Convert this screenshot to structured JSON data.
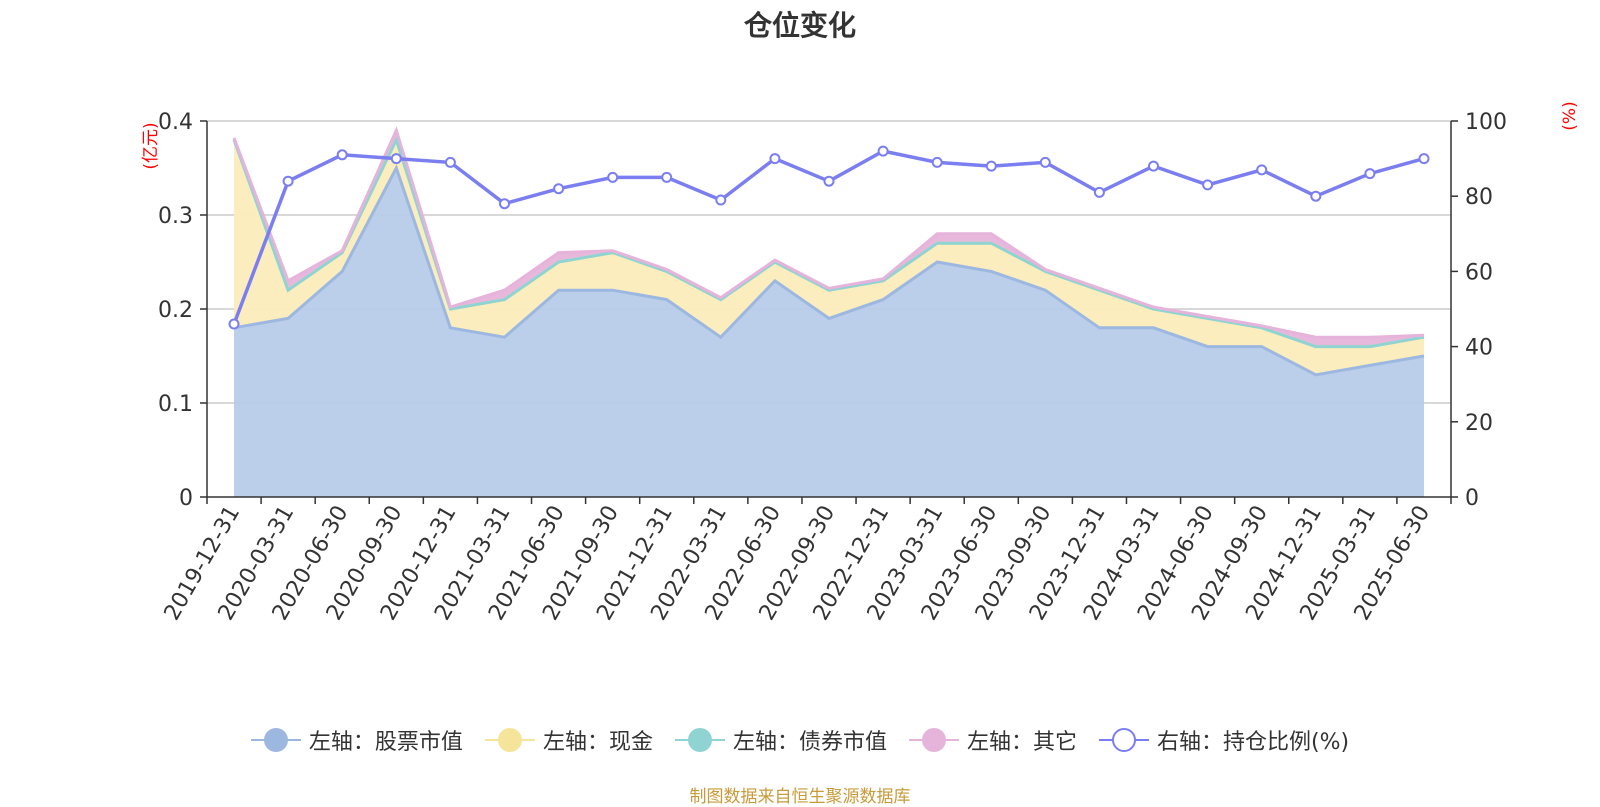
{
  "title": "仓位变化",
  "source_note": "制图数据来自恒生聚源数据库",
  "colors": {
    "stock": "#9db8e0",
    "stock_fill": "#b7cbe9",
    "cash": "#f5e49a",
    "cash_fill": "#fbecba",
    "bond": "#8fd3d3",
    "other": "#e6b3da",
    "ratio": "#7b7ef0",
    "axis_name": "#ff0000",
    "grid": "#cccccc"
  },
  "chart_data": {
    "type": "area",
    "left_axis": {
      "name": "(亿元)",
      "min": 0,
      "max": 0.4,
      "ticks": [
        "0",
        "0.1",
        "0.2",
        "0.3",
        "0.4"
      ]
    },
    "right_axis": {
      "name": "(%)",
      "min": 0,
      "max": 100,
      "ticks": [
        "0",
        "20",
        "40",
        "60",
        "80",
        "100"
      ]
    },
    "categories": [
      "2019-12-31",
      "2020-03-31",
      "2020-06-30",
      "2020-09-30",
      "2020-12-31",
      "2021-03-31",
      "2021-06-30",
      "2021-09-30",
      "2021-12-31",
      "2022-03-31",
      "2022-06-30",
      "2022-09-30",
      "2022-12-31",
      "2023-03-31",
      "2023-06-30",
      "2023-09-30",
      "2023-12-31",
      "2024-03-31",
      "2024-06-30",
      "2024-09-30",
      "2024-12-31",
      "2025-03-31",
      "2025-06-30"
    ],
    "series": [
      {
        "name": "左轴：股票市值",
        "axis": "left",
        "kind": "stacked-area",
        "values": [
          0.18,
          0.19,
          0.24,
          0.35,
          0.18,
          0.17,
          0.22,
          0.22,
          0.21,
          0.17,
          0.23,
          0.19,
          0.21,
          0.25,
          0.24,
          0.22,
          0.18,
          0.18,
          0.16,
          0.16,
          0.13,
          0.14,
          0.15
        ]
      },
      {
        "name": "左轴：现金",
        "axis": "left",
        "kind": "stacked-area",
        "values": [
          0.2,
          0.03,
          0.02,
          0.03,
          0.02,
          0.04,
          0.03,
          0.04,
          0.03,
          0.04,
          0.02,
          0.03,
          0.02,
          0.02,
          0.03,
          0.02,
          0.04,
          0.02,
          0.03,
          0.02,
          0.03,
          0.02,
          0.02
        ]
      },
      {
        "name": "左轴：债券市值",
        "axis": "left",
        "kind": "stacked-area",
        "values": [
          0,
          0,
          0,
          0,
          0,
          0,
          0,
          0,
          0,
          0,
          0,
          0,
          0,
          0,
          0,
          0,
          0,
          0,
          0,
          0,
          0,
          0,
          0
        ]
      },
      {
        "name": "左轴：其它",
        "axis": "left",
        "kind": "stacked-area",
        "values": [
          0.002,
          0.01,
          0.002,
          0.01,
          0.002,
          0.01,
          0.01,
          0.002,
          0.002,
          0.002,
          0.002,
          0.002,
          0.002,
          0.01,
          0.01,
          0.002,
          0.002,
          0.002,
          0.002,
          0.002,
          0.01,
          0.01,
          0.002
        ]
      },
      {
        "name": "右轴：持仓比例(%)",
        "axis": "right",
        "kind": "line",
        "values": [
          46,
          84,
          91,
          90,
          89,
          78,
          82,
          85,
          85,
          79,
          90,
          84,
          92,
          89,
          88,
          89,
          81,
          88,
          83,
          87,
          80,
          86,
          90
        ]
      }
    ]
  }
}
